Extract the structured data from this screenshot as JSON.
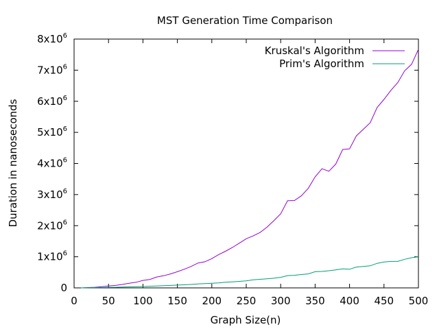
{
  "chart_data": {
    "type": "line",
    "title": "MST Generation Time Comparison",
    "xlabel": "Graph Size(n)",
    "ylabel": "Duration in nanoseconds",
    "xlim": [
      0,
      500
    ],
    "ylim": [
      0,
      8000000
    ],
    "xticks": [
      0,
      50,
      100,
      150,
      200,
      250,
      300,
      350,
      400,
      450,
      500
    ],
    "yticks": [
      {
        "value": 0,
        "label": "0",
        "exp": ""
      },
      {
        "value": 1000000,
        "label": "1x10",
        "exp": "6"
      },
      {
        "value": 2000000,
        "label": "2x10",
        "exp": "6"
      },
      {
        "value": 3000000,
        "label": "3x10",
        "exp": "6"
      },
      {
        "value": 4000000,
        "label": "4x10",
        "exp": "6"
      },
      {
        "value": 5000000,
        "label": "5x10",
        "exp": "6"
      },
      {
        "value": 6000000,
        "label": "6x10",
        "exp": "6"
      },
      {
        "value": 7000000,
        "label": "7x10",
        "exp": "6"
      },
      {
        "value": 8000000,
        "label": "8x10",
        "exp": "6"
      }
    ],
    "grid": false,
    "legend_position": "top-right",
    "x": [
      10,
      20,
      30,
      40,
      50,
      60,
      70,
      80,
      90,
      100,
      110,
      120,
      130,
      140,
      150,
      160,
      170,
      180,
      190,
      200,
      210,
      220,
      230,
      240,
      250,
      260,
      270,
      280,
      290,
      300,
      310,
      320,
      330,
      340,
      350,
      360,
      370,
      380,
      390,
      400,
      410,
      420,
      430,
      440,
      450,
      460,
      470,
      480,
      490,
      500
    ],
    "series": [
      {
        "name": "Kruskal's Algorithm",
        "color": "#9400d3",
        "values": [
          0,
          10000,
          20000,
          40000,
          60000,
          80000,
          110000,
          150000,
          180000,
          240000,
          270000,
          350000,
          390000,
          450000,
          520000,
          600000,
          690000,
          800000,
          840000,
          940000,
          1070000,
          1180000,
          1300000,
          1440000,
          1580000,
          1670000,
          1780000,
          1950000,
          2160000,
          2380000,
          2800000,
          2810000,
          2960000,
          3200000,
          3570000,
          3830000,
          3750000,
          3980000,
          4450000,
          4470000,
          4890000,
          5100000,
          5310000,
          5800000,
          6060000,
          6350000,
          6600000,
          6980000,
          7190000,
          7670000
        ]
      },
      {
        "name": "Prim's Algorithm",
        "color": "#009e73",
        "values": [
          0,
          5000,
          8000,
          12000,
          16000,
          20000,
          26000,
          32000,
          38000,
          45000,
          52000,
          60000,
          70000,
          80000,
          90000,
          100000,
          110000,
          125000,
          138000,
          150000,
          160000,
          180000,
          195000,
          210000,
          225000,
          260000,
          275000,
          290000,
          310000,
          340000,
          395000,
          405000,
          430000,
          450000,
          520000,
          530000,
          550000,
          580000,
          610000,
          600000,
          670000,
          690000,
          710000,
          790000,
          830000,
          850000,
          850000,
          920000,
          970000,
          1000000
        ]
      }
    ]
  }
}
